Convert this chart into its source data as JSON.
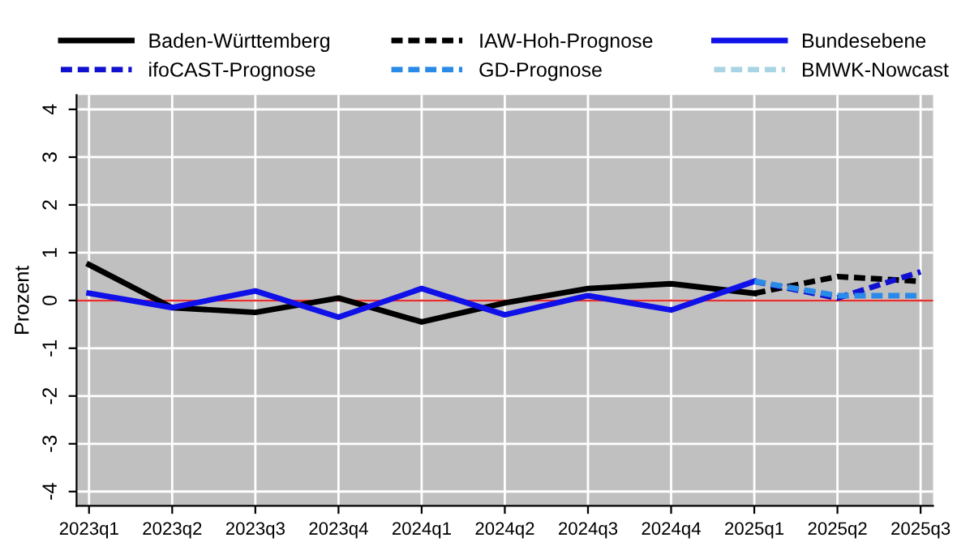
{
  "chart_data": {
    "type": "line",
    "ylabel": "Prozent",
    "categories": [
      "2023q1",
      "2023q2",
      "2023q3",
      "2023q4",
      "2024q1",
      "2024q2",
      "2024q3",
      "2024q4",
      "2025q1",
      "2025q2",
      "2025q3"
    ],
    "series": [
      {
        "name": "Baden-Württemberg",
        "color": "#000000",
        "line_style": "solid",
        "values": [
          0.75,
          -0.15,
          -0.25,
          0.05,
          -0.45,
          -0.05,
          0.25,
          0.35,
          0.15,
          null,
          null
        ]
      },
      {
        "name": "IAW-Hoh-Prognose",
        "color": "#000000",
        "line_style": "dashed",
        "values": [
          null,
          null,
          null,
          null,
          null,
          null,
          null,
          null,
          0.15,
          0.5,
          0.4
        ]
      },
      {
        "name": "Bundesebene",
        "color": "#1010e8",
        "line_style": "solid",
        "values": [
          0.15,
          -0.15,
          0.2,
          -0.35,
          0.25,
          -0.3,
          0.1,
          -0.2,
          0.4,
          null,
          null
        ]
      },
      {
        "name": "ifoCAST-Prognose",
        "color": "#1010d0",
        "line_style": "dashed",
        "values": [
          null,
          null,
          null,
          null,
          null,
          null,
          null,
          null,
          0.4,
          0.05,
          0.6
        ]
      },
      {
        "name": "GD-Prognose",
        "color": "#2a8ae8",
        "line_style": "dashed",
        "values": [
          null,
          null,
          null,
          null,
          null,
          null,
          null,
          null,
          0.4,
          0.1,
          0.1
        ]
      },
      {
        "name": "BMWK-Nowcast",
        "color": "#a8d4e4",
        "line_style": "dashed",
        "values": [
          null,
          null,
          null,
          null,
          null,
          null,
          null,
          null,
          null,
          null,
          null
        ]
      }
    ],
    "ylim": [
      -4.3,
      4.3
    ],
    "yticks": [
      -4,
      -3,
      -2,
      -1,
      0,
      1,
      2,
      3,
      4
    ],
    "ref_lines": [
      {
        "axis": "y",
        "value": 0,
        "color": "#e03030",
        "line_style": "solid"
      }
    ],
    "grid": true,
    "legend": "top",
    "marker": "none"
  }
}
